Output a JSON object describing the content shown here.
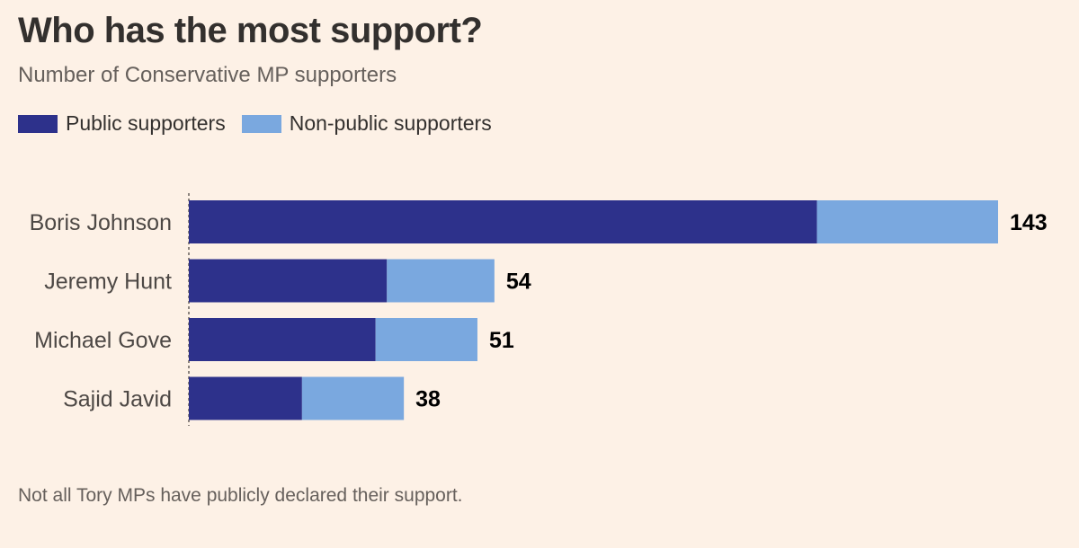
{
  "chart_data": {
    "type": "bar",
    "orientation": "horizontal",
    "stacked": true,
    "title": "Who has the most support?",
    "subtitle": "Number of Conservative MP supporters",
    "categories": [
      "Boris Johnson",
      "Jeremy Hunt",
      "Michael Gove",
      "Sajid Javid"
    ],
    "series": [
      {
        "name": "Public supporters",
        "color": "#2d318b",
        "values": [
          111,
          35,
          33,
          20
        ]
      },
      {
        "name": "Non-public supporters",
        "color": "#7aa8df",
        "values": [
          32,
          19,
          18,
          18
        ]
      }
    ],
    "totals": [
      "143",
      "54",
      "51",
      "38"
    ],
    "xlim": [
      0,
      143
    ],
    "grid": false,
    "legend_position": "top-left",
    "footnote": "Not all Tory MPs have publicly declared their support."
  }
}
